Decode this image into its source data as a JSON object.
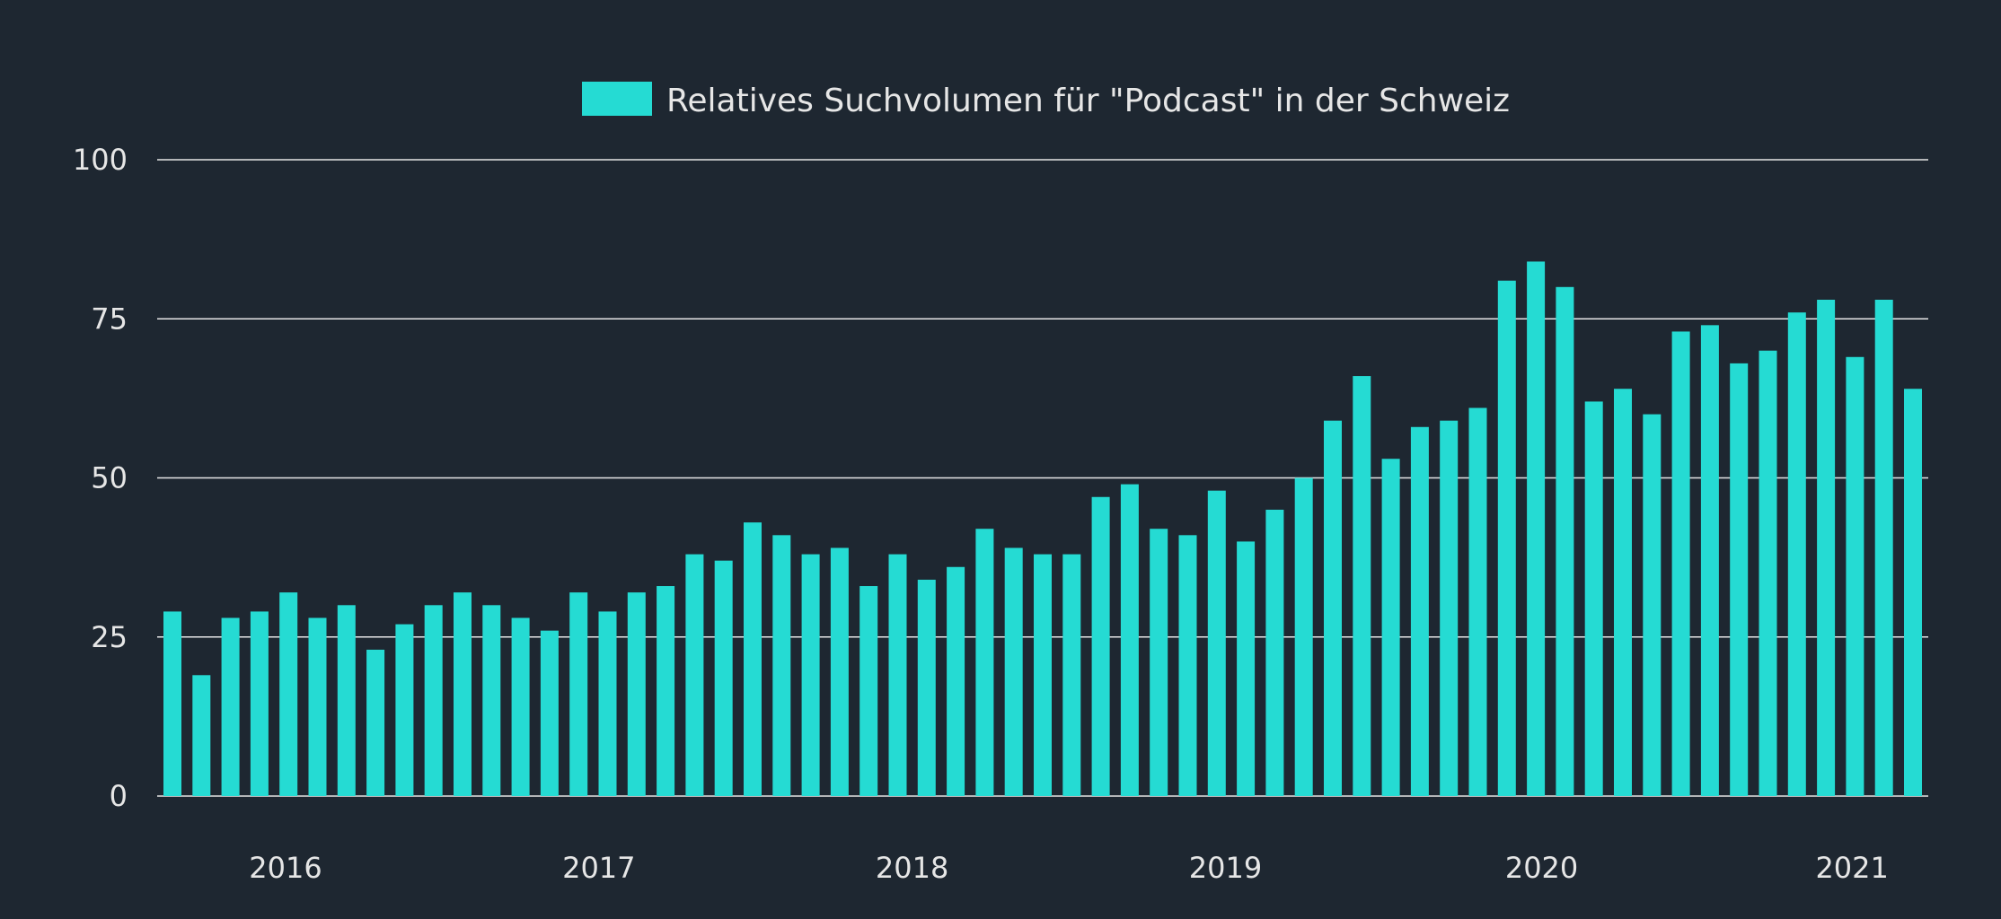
{
  "chart_data": {
    "type": "bar",
    "title": "",
    "legend": [
      {
        "label": "Relatives Suchvolumen für \"Podcast\" in der Schweiz",
        "color": "#25dbd3"
      }
    ],
    "legend_placement": "top-center",
    "ylim": [
      0,
      100
    ],
    "y_ticks": [
      "0",
      "25",
      "50",
      "75",
      "100"
    ],
    "grid": true,
    "x_ticks": [
      {
        "label": "2016",
        "at_bar_index": 3.9
      },
      {
        "label": "2017",
        "at_bar_index": 14.7
      },
      {
        "label": "2018",
        "at_bar_index": 25.5
      },
      {
        "label": "2019",
        "at_bar_index": 36.3
      },
      {
        "label": "2020",
        "at_bar_index": 47.2
      },
      {
        "label": "2021",
        "at_bar_index": 57.9
      }
    ],
    "series": [
      {
        "name": "Relatives Suchvolumen für \"Podcast\" in der Schweiz",
        "color": "#25dbd3",
        "values": [
          29,
          19,
          28,
          29,
          32,
          28,
          30,
          23,
          27,
          30,
          32,
          30,
          28,
          26,
          32,
          29,
          32,
          33,
          38,
          37,
          43,
          41,
          38,
          39,
          33,
          38,
          34,
          36,
          42,
          39,
          38,
          38,
          47,
          49,
          42,
          41,
          48,
          40,
          45,
          50,
          59,
          66,
          53,
          58,
          59,
          61,
          81,
          84,
          80,
          62,
          64,
          60,
          73,
          74,
          68,
          70,
          76,
          78,
          69,
          78,
          64
        ]
      }
    ]
  }
}
